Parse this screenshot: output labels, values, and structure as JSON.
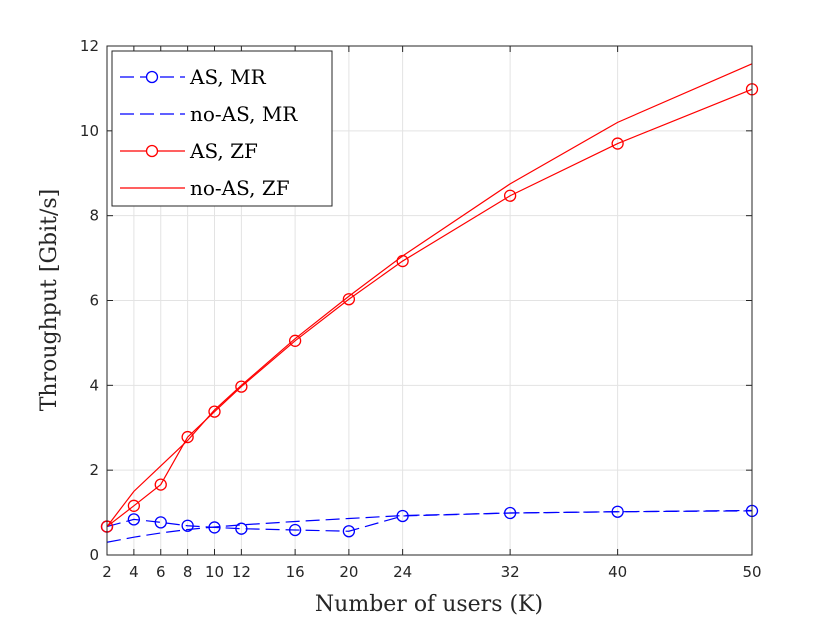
{
  "chart_data": {
    "type": "line",
    "xlabel": "Number of users (K)",
    "ylabel": "Throughput [Gbit/s]",
    "xlim": [
      2,
      50
    ],
    "ylim": [
      0,
      12
    ],
    "grid": true,
    "legend_position": "top-left",
    "xticks": [
      2,
      4,
      6,
      8,
      10,
      12,
      16,
      20,
      24,
      32,
      40,
      50
    ],
    "yticks": [
      0,
      2,
      4,
      6,
      8,
      10,
      12
    ],
    "series": [
      {
        "name": "AS, MR",
        "color": "#0000ff",
        "line_style": "dashed",
        "marker": "circle",
        "x": [
          2,
          4,
          6,
          8,
          10,
          12,
          16,
          20,
          24,
          32,
          40,
          50
        ],
        "values": [
          0.67,
          0.84,
          0.77,
          0.69,
          0.65,
          0.62,
          0.59,
          0.56,
          0.92,
          0.99,
          1.02,
          1.04
        ]
      },
      {
        "name": "no-AS, MR",
        "color": "#0000ff",
        "line_style": "dashed",
        "marker": "none",
        "x": [
          2,
          4,
          6,
          8,
          10,
          12,
          16,
          20,
          24,
          32,
          40,
          50
        ],
        "values": [
          0.3,
          0.42,
          0.52,
          0.6,
          0.66,
          0.71,
          0.79,
          0.86,
          0.93,
          0.99,
          1.02,
          1.05
        ]
      },
      {
        "name": "AS, ZF",
        "color": "#ff0000",
        "line_style": "solid",
        "marker": "circle",
        "x": [
          2,
          4,
          6,
          8,
          10,
          12,
          16,
          20,
          24,
          32,
          40,
          50
        ],
        "values": [
          0.67,
          1.16,
          1.66,
          2.78,
          3.38,
          3.97,
          5.05,
          6.03,
          6.93,
          8.47,
          9.7,
          10.98
        ]
      },
      {
        "name": "no-AS, ZF",
        "color": "#ff0000",
        "line_style": "solid",
        "marker": "none",
        "x": [
          2,
          4,
          6,
          8,
          10,
          12,
          16,
          20,
          24,
          32,
          40,
          50
        ],
        "values": [
          0.67,
          1.5,
          2.1,
          2.7,
          3.42,
          4.0,
          5.1,
          6.1,
          7.05,
          8.75,
          10.2,
          11.58
        ]
      }
    ]
  }
}
